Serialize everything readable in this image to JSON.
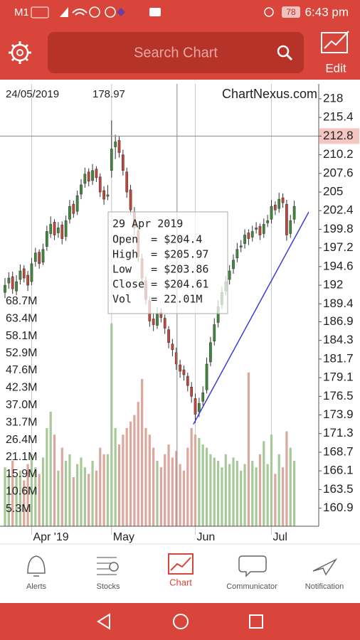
{
  "status_bar": {
    "carrier": "M1",
    "battery": "78",
    "time": "6:43 pm"
  },
  "header": {
    "search_placeholder": "Search Chart",
    "edit": "Edit"
  },
  "chart_data": {
    "type": "candlestick",
    "date": "24/05/2019",
    "price": "178.97",
    "brand": "ChartNexus.com",
    "ohlc": [
      [
        191.0,
        193.0,
        190.2,
        192.0
      ],
      [
        192.3,
        193.8,
        191.5,
        193.0
      ],
      [
        193.2,
        193.9,
        190.8,
        191.5
      ],
      [
        191.2,
        193.4,
        190.6,
        192.5
      ],
      [
        192.8,
        194.9,
        192.1,
        194.0
      ],
      [
        194.3,
        194.8,
        192.4,
        193.0
      ],
      [
        193.4,
        194.0,
        191.2,
        192.0
      ],
      [
        192.5,
        195.8,
        192.0,
        195.0
      ],
      [
        195.3,
        197.2,
        194.6,
        196.5
      ],
      [
        196.6,
        197.0,
        194.3,
        195.0
      ],
      [
        195.2,
        197.8,
        194.8,
        197.0
      ],
      [
        197.4,
        200.3,
        196.8,
        199.5
      ],
      [
        199.2,
        201.6,
        198.6,
        200.5
      ],
      [
        200.8,
        201.2,
        198.3,
        199.0
      ],
      [
        199.3,
        200.8,
        198.6,
        200.0
      ],
      [
        200.4,
        200.9,
        197.7,
        198.5
      ],
      [
        198.8,
        201.7,
        198.2,
        201.0
      ],
      [
        201.2,
        203.9,
        200.6,
        203.0
      ],
      [
        203.3,
        203.8,
        201.4,
        202.0
      ],
      [
        202.3,
        205.2,
        201.8,
        204.5
      ],
      [
        204.7,
        206.8,
        204.0,
        206.0
      ],
      [
        206.2,
        208.4,
        205.6,
        207.5
      ],
      [
        207.8,
        208.3,
        205.8,
        206.5
      ],
      [
        206.6,
        208.9,
        206.0,
        208.0
      ],
      [
        208.2,
        208.6,
        206.4,
        207.0
      ],
      [
        207.1,
        207.6,
        204.3,
        205.0
      ],
      [
        205.2,
        205.8,
        203.2,
        204.0
      ],
      [
        204.4,
        205.97,
        203.86,
        204.61
      ],
      [
        208.0,
        215.0,
        207.0,
        211.0
      ],
      [
        211.3,
        213.0,
        209.6,
        212.0
      ],
      [
        212.2,
        212.8,
        209.8,
        210.5
      ],
      [
        210.2,
        210.9,
        207.3,
        208.0
      ],
      [
        207.8,
        208.4,
        204.2,
        205.0
      ],
      [
        205.3,
        206.0,
        201.8,
        202.5
      ],
      [
        202.2,
        202.9,
        199.1,
        200.0
      ],
      [
        199.6,
        200.3,
        195.2,
        196.0
      ],
      [
        195.7,
        196.4,
        192.1,
        193.0
      ],
      [
        192.6,
        193.2,
        189.3,
        190.0
      ],
      [
        189.8,
        190.4,
        186.2,
        187.0
      ],
      [
        187.3,
        188.1,
        185.6,
        186.5
      ],
      [
        186.4,
        188.9,
        185.9,
        188.0
      ],
      [
        188.2,
        188.8,
        186.8,
        187.5
      ],
      [
        187.4,
        187.9,
        185.2,
        186.0
      ],
      [
        185.8,
        186.3,
        183.2,
        184.0
      ],
      [
        183.8,
        184.5,
        182.1,
        183.0
      ],
      [
        182.6,
        183.3,
        180.2,
        181.0
      ],
      [
        180.9,
        181.6,
        179.1,
        180.0
      ],
      [
        180.2,
        180.8,
        178.7,
        179.5
      ],
      [
        179.3,
        179.8,
        177.2,
        178.0
      ],
      [
        177.8,
        178.5,
        175.6,
        176.5
      ],
      [
        176.2,
        176.9,
        172.8,
        174.0
      ],
      [
        174.4,
        176.3,
        173.6,
        175.5
      ],
      [
        175.8,
        177.9,
        175.2,
        177.0
      ],
      [
        177.4,
        181.9,
        176.9,
        181.0
      ],
      [
        181.3,
        184.8,
        180.7,
        184.0
      ],
      [
        184.2,
        187.4,
        183.6,
        186.5
      ],
      [
        186.8,
        189.9,
        186.1,
        189.0
      ],
      [
        189.3,
        191.8,
        188.7,
        191.0
      ],
      [
        191.2,
        193.3,
        190.6,
        192.5
      ],
      [
        192.8,
        194.8,
        192.1,
        194.0
      ],
      [
        194.3,
        196.3,
        193.6,
        195.5
      ],
      [
        195.8,
        197.9,
        195.2,
        197.0
      ],
      [
        197.3,
        198.3,
        196.6,
        197.5
      ],
      [
        197.8,
        199.8,
        197.1,
        199.0
      ],
      [
        199.3,
        199.8,
        197.6,
        198.5
      ],
      [
        198.7,
        200.3,
        198.1,
        199.5
      ],
      [
        199.8,
        200.8,
        199.2,
        200.0
      ],
      [
        200.2,
        200.6,
        198.3,
        199.0
      ],
      [
        199.2,
        201.3,
        198.6,
        200.5
      ],
      [
        200.7,
        201.8,
        200.1,
        201.0
      ],
      [
        201.2,
        203.9,
        200.6,
        203.0
      ],
      [
        203.2,
        203.7,
        201.8,
        202.5
      ],
      [
        202.7,
        204.9,
        202.1,
        204.0
      ],
      [
        204.2,
        204.8,
        202.8,
        203.5
      ],
      [
        203.3,
        203.9,
        198.2,
        199.0
      ],
      [
        199.2,
        201.8,
        198.6,
        201.0
      ],
      [
        201.2,
        203.8,
        200.6,
        203.0
      ]
    ],
    "volume": [
      18,
      16,
      20,
      15,
      17,
      14,
      19,
      22,
      18,
      16,
      21,
      30,
      35,
      28,
      17,
      24,
      20,
      22,
      15,
      19,
      21,
      18,
      16,
      20,
      17,
      24,
      22,
      22.01,
      62,
      30,
      25,
      28,
      30,
      32,
      34,
      38,
      45,
      30,
      28,
      24,
      20,
      18,
      22,
      25,
      21,
      23,
      19,
      17,
      24,
      30,
      28,
      27,
      25,
      24,
      22,
      21,
      20,
      18,
      22,
      19,
      21,
      20,
      17,
      19,
      47,
      20,
      18,
      22,
      26,
      19,
      28,
      16,
      22,
      18,
      29,
      24,
      20
    ],
    "up_color": "#3f8a3a",
    "down_color": "#c4463a",
    "volume_up_color": "#a7c999",
    "volume_down_color": "#dca79e",
    "xlim": [
      -1.31,
      82.43
    ],
    "xticks": [
      {
        "value": 7,
        "label": "Apr '19"
      },
      {
        "value": 28,
        "label": "May"
      },
      {
        "value": 50,
        "label": "Jun"
      },
      {
        "value": 70,
        "label": "Jul"
      }
    ],
    "ylim": [
      158.38,
      220.08
    ],
    "yticks": [
      218,
      215.4,
      212.8,
      210.2,
      207.6,
      205,
      202.4,
      199.8,
      197.2,
      194.6,
      192,
      189.4,
      186.9,
      184.3,
      181.7,
      179.1,
      176.5,
      173.9,
      171.3,
      168.7,
      166.1,
      163.5,
      160.9
    ],
    "y2lim": [
      0,
      135.2
    ],
    "y2ticks": [
      {
        "value": 68.7,
        "label": "68.7M"
      },
      {
        "value": 63.4,
        "label": "63.4M"
      },
      {
        "value": 58.1,
        "label": "58.1M"
      },
      {
        "value": 52.9,
        "label": "52.9M"
      },
      {
        "value": 47.6,
        "label": "47.6M"
      },
      {
        "value": 42.3,
        "label": "42.3M"
      },
      {
        "value": 37.0,
        "label": "37.0M"
      },
      {
        "value": 31.7,
        "label": "31.7M"
      },
      {
        "value": 26.4,
        "label": "26.4M"
      },
      {
        "value": 21.1,
        "label": "21.1M"
      },
      {
        "value": 15.9,
        "label": "15.9M"
      },
      {
        "value": 10.6,
        "label": "10.6M"
      },
      {
        "value": 5.3,
        "label": "5.3M"
      }
    ],
    "crosshair": {
      "x": 45.2,
      "y": 212.8
    },
    "trendline": {
      "x": [
        49.5,
        79.8
      ],
      "y": [
        172.6,
        202.2
      ],
      "color": "#3c3cd8"
    },
    "tooltip": {
      "title": "29 Apr 2019",
      "lines": [
        "Open  = $204.4",
        "High  = $205.97",
        "Low   = $203.86",
        "Close = $204.61",
        "Vol   = 22.01M"
      ]
    }
  },
  "bottom_nav": {
    "items": [
      "Alerts",
      "Stocks",
      "Chart",
      "Communicator",
      "Notification"
    ],
    "active": 2
  }
}
